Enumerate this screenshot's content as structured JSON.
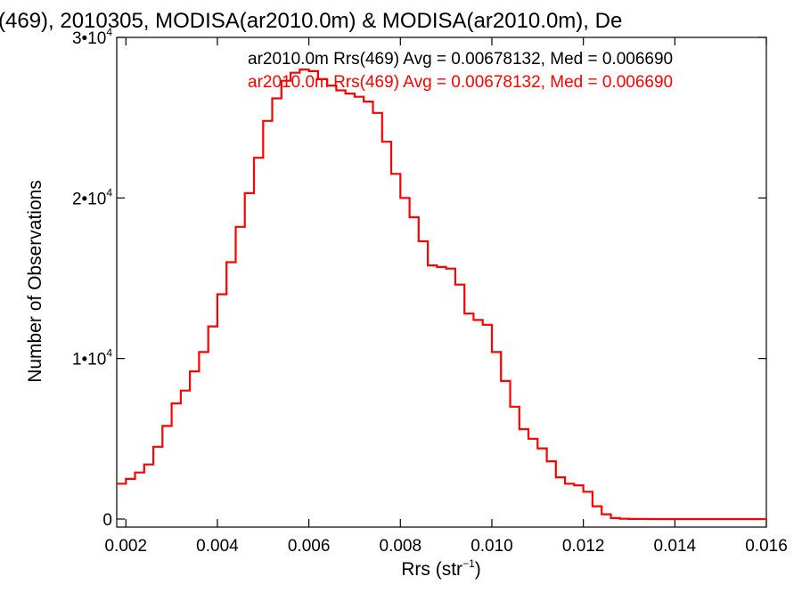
{
  "chart_data": {
    "type": "line",
    "title": "(469), 2010305, MODISA(ar2010.0m) & MODISA(ar2010.0m), De",
    "xlabel": "Rrs (str",
    "xlabel_sup": "−1",
    "xlabel_close": ")",
    "ylabel": "Number of Observations",
    "xlim": [
      0.0018,
      0.016
    ],
    "ylim": [
      -500,
      30000
    ],
    "x_ticks": [
      {
        "value": 0.002,
        "label": "0.002"
      },
      {
        "value": 0.004,
        "label": "0.004"
      },
      {
        "value": 0.006,
        "label": "0.006"
      },
      {
        "value": 0.008,
        "label": "0.008"
      },
      {
        "value": 0.01,
        "label": "0.010"
      },
      {
        "value": 0.012,
        "label": "0.012"
      },
      {
        "value": 0.014,
        "label": "0.014"
      },
      {
        "value": 0.016,
        "label": "0.016"
      }
    ],
    "y_ticks": [
      {
        "value": 0,
        "mant": "0",
        "exp": ""
      },
      {
        "value": 10000,
        "mant": "1•10",
        "exp": "4"
      },
      {
        "value": 20000,
        "mant": "2•10",
        "exp": "4"
      },
      {
        "value": 30000,
        "mant": "3•10",
        "exp": "4"
      }
    ],
    "grid": false,
    "legend": [
      {
        "text": "ar2010.0m Rrs(469) Avg = 0.00678132, Med = 0.006690",
        "color": "#000000"
      },
      {
        "text": "ar2010.0m Rrs(469) Avg = 0.00678132, Med = 0.006690",
        "color": "#ff0000"
      }
    ],
    "series": [
      {
        "color": "#ff0000",
        "x": [
          0.0018,
          0.002,
          0.0022,
          0.0024,
          0.0026,
          0.0028,
          0.003,
          0.0032,
          0.0034,
          0.0036,
          0.0038,
          0.004,
          0.0042,
          0.0044,
          0.0046,
          0.0048,
          0.005,
          0.0052,
          0.0054,
          0.0056,
          0.0058,
          0.006,
          0.0062,
          0.0064,
          0.0066,
          0.0068,
          0.007,
          0.0072,
          0.0074,
          0.0076,
          0.0078,
          0.008,
          0.0082,
          0.0084,
          0.0086,
          0.0088,
          0.009,
          0.0092,
          0.0094,
          0.0096,
          0.0098,
          0.01,
          0.0102,
          0.0104,
          0.0106,
          0.0108,
          0.011,
          0.0112,
          0.0114,
          0.0116,
          0.0118,
          0.012,
          0.0122,
          0.0124,
          0.0126,
          0.0128,
          0.013,
          0.0132,
          0.0134,
          0.0136,
          0.014,
          0.015,
          0.016
        ],
        "y": [
          2200,
          2500,
          2900,
          3400,
          4500,
          5800,
          7200,
          8000,
          9200,
          10400,
          12000,
          14000,
          16000,
          18200,
          20300,
          22500,
          24800,
          26200,
          27300,
          27800,
          28000,
          27900,
          27400,
          27000,
          26700,
          26500,
          26300,
          26000,
          25300,
          23500,
          21500,
          20000,
          18800,
          17300,
          15800,
          15700,
          15600,
          14600,
          12800,
          12400,
          12100,
          10400,
          8600,
          7000,
          5600,
          5000,
          4400,
          3600,
          2600,
          2200,
          2100,
          1700,
          800,
          300,
          60,
          20,
          5,
          2,
          1,
          0,
          0,
          0,
          0
        ]
      }
    ]
  }
}
